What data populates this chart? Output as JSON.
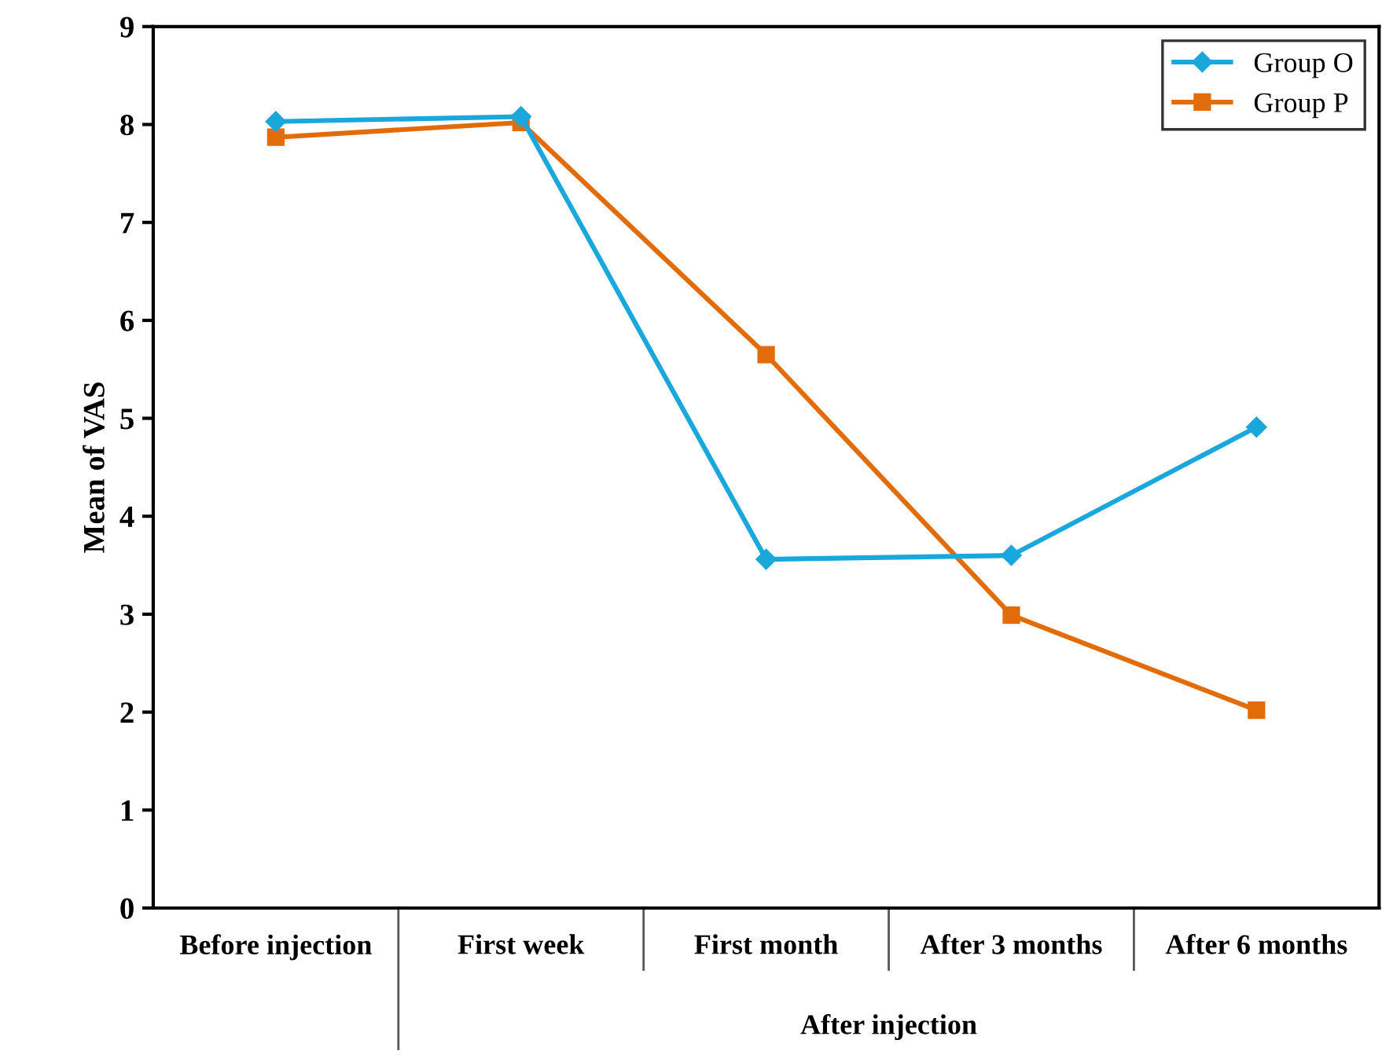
{
  "chart_data": {
    "type": "line",
    "ylabel": "Mean of VAS",
    "categories": [
      "Before injection",
      "First week",
      "First month",
      "After 3 months",
      "After 6 months"
    ],
    "series": [
      {
        "name": "Group O",
        "color": "#1aa7dc",
        "marker": "diamond",
        "values": [
          8.03,
          8.08,
          3.56,
          3.6,
          4.91
        ]
      },
      {
        "name": "Group P",
        "color": "#e36c0a",
        "marker": "square",
        "values": [
          7.87,
          8.02,
          5.65,
          2.99,
          2.02
        ]
      }
    ],
    "ylim": [
      0,
      9
    ],
    "yticks": [
      0,
      1,
      2,
      3,
      4,
      5,
      6,
      7,
      8,
      9
    ],
    "grid": false,
    "legend": "top right",
    "line_style": "solid",
    "annotations": [
      "After injection"
    ]
  }
}
